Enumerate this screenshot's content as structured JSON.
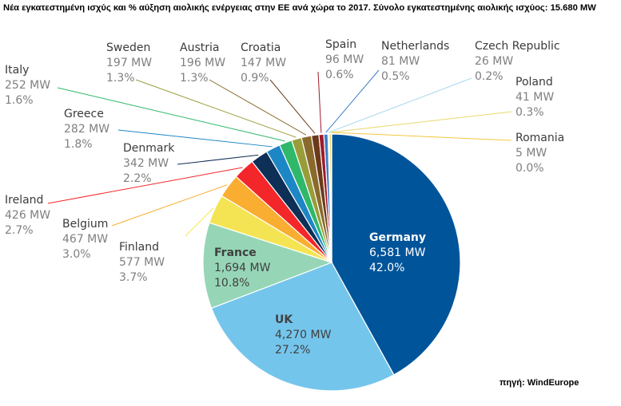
{
  "title": "Νέα εγκατεστημένη ισχύς και % αύξηση αιολικής ενέργειας στην ΕΕ ανά χώρα το 2017. Σύνολο εγκατεστημένης αιολικής ισχύος: 15.680 MW",
  "source": "πηγή: WindEurope",
  "chart_data": {
    "type": "pie",
    "title": "Νέα εγκατεστημένη ισχύς και % αύξηση αιολικής ενέργειας στην ΕΕ ανά χώρα το 2017. Σύνολο εγκατεστημένης αιολικής ισχύος: 15.680 MW",
    "start_angle_deg": 0,
    "direction": "clockwise",
    "slices": [
      {
        "name": "Germany",
        "value": 6581,
        "value_label": "6,581 MW",
        "pct_label": "42.0%",
        "color": "#00549a",
        "text_color": "#ffffff",
        "label_inside": true
      },
      {
        "name": "UK",
        "value": 4270,
        "value_label": "4,270 MW",
        "pct_label": "27.2%",
        "color": "#74c5ec",
        "text_color": "#404040",
        "label_inside": true
      },
      {
        "name": "France",
        "value": 1694,
        "value_label": "1,694 MW",
        "pct_label": "10.8%",
        "color": "#96d6b6",
        "text_color": "#404040",
        "label_inside": true
      },
      {
        "name": "Finland",
        "value": 577,
        "value_label": "577 MW",
        "pct_label": "3.7%",
        "color": "#f4e453",
        "label_inside": false
      },
      {
        "name": "Belgium",
        "value": 467,
        "value_label": "467 MW",
        "pct_label": "3.0%",
        "color": "#f9ad31",
        "label_inside": false
      },
      {
        "name": "Ireland",
        "value": 426,
        "value_label": "426 MW",
        "pct_label": "2.7%",
        "color": "#f3262a",
        "label_inside": false
      },
      {
        "name": "Denmark",
        "value": 342,
        "value_label": "342 MW",
        "pct_label": "2.2%",
        "color": "#0e2f56",
        "label_inside": false
      },
      {
        "name": "Greece",
        "value": 282,
        "value_label": "282 MW",
        "pct_label": "1.8%",
        "color": "#1d86c5",
        "label_inside": false
      },
      {
        "name": "Italy",
        "value": 252,
        "value_label": "252 MW",
        "pct_label": "1.6%",
        "color": "#2fb86a",
        "label_inside": false
      },
      {
        "name": "Sweden",
        "value": 197,
        "value_label": "197 MW",
        "pct_label": "1.3%",
        "color": "#9a9c3a",
        "label_inside": false
      },
      {
        "name": "Austria",
        "value": 196,
        "value_label": "196 MW",
        "pct_label": "1.3%",
        "color": "#8a6a2c",
        "label_inside": false
      },
      {
        "name": "Croatia",
        "value": 147,
        "value_label": "147 MW",
        "pct_label": "0.9%",
        "color": "#6a3a1a",
        "label_inside": false
      },
      {
        "name": "Spain",
        "value": 96,
        "value_label": "96 MW",
        "pct_label": "0.6%",
        "color": "#a01a2a",
        "label_inside": false
      },
      {
        "name": "Netherlands",
        "value": 81,
        "value_label": "81 MW",
        "pct_label": "0.5%",
        "color": "#3d7ec4",
        "label_inside": false
      },
      {
        "name": "Czech Republic",
        "value": 26,
        "value_label": "26 MW",
        "pct_label": "0.2%",
        "color": "#a8d8ee",
        "label_inside": false
      },
      {
        "name": "Poland",
        "value": 41,
        "value_label": "41 MW",
        "pct_label": "0.3%",
        "color": "#e8d86a",
        "label_inside": false
      },
      {
        "name": "Romania",
        "value": 5,
        "value_label": "5 MW",
        "pct_label": "0.0%",
        "color": "#f2c840",
        "label_inside": false
      }
    ]
  }
}
